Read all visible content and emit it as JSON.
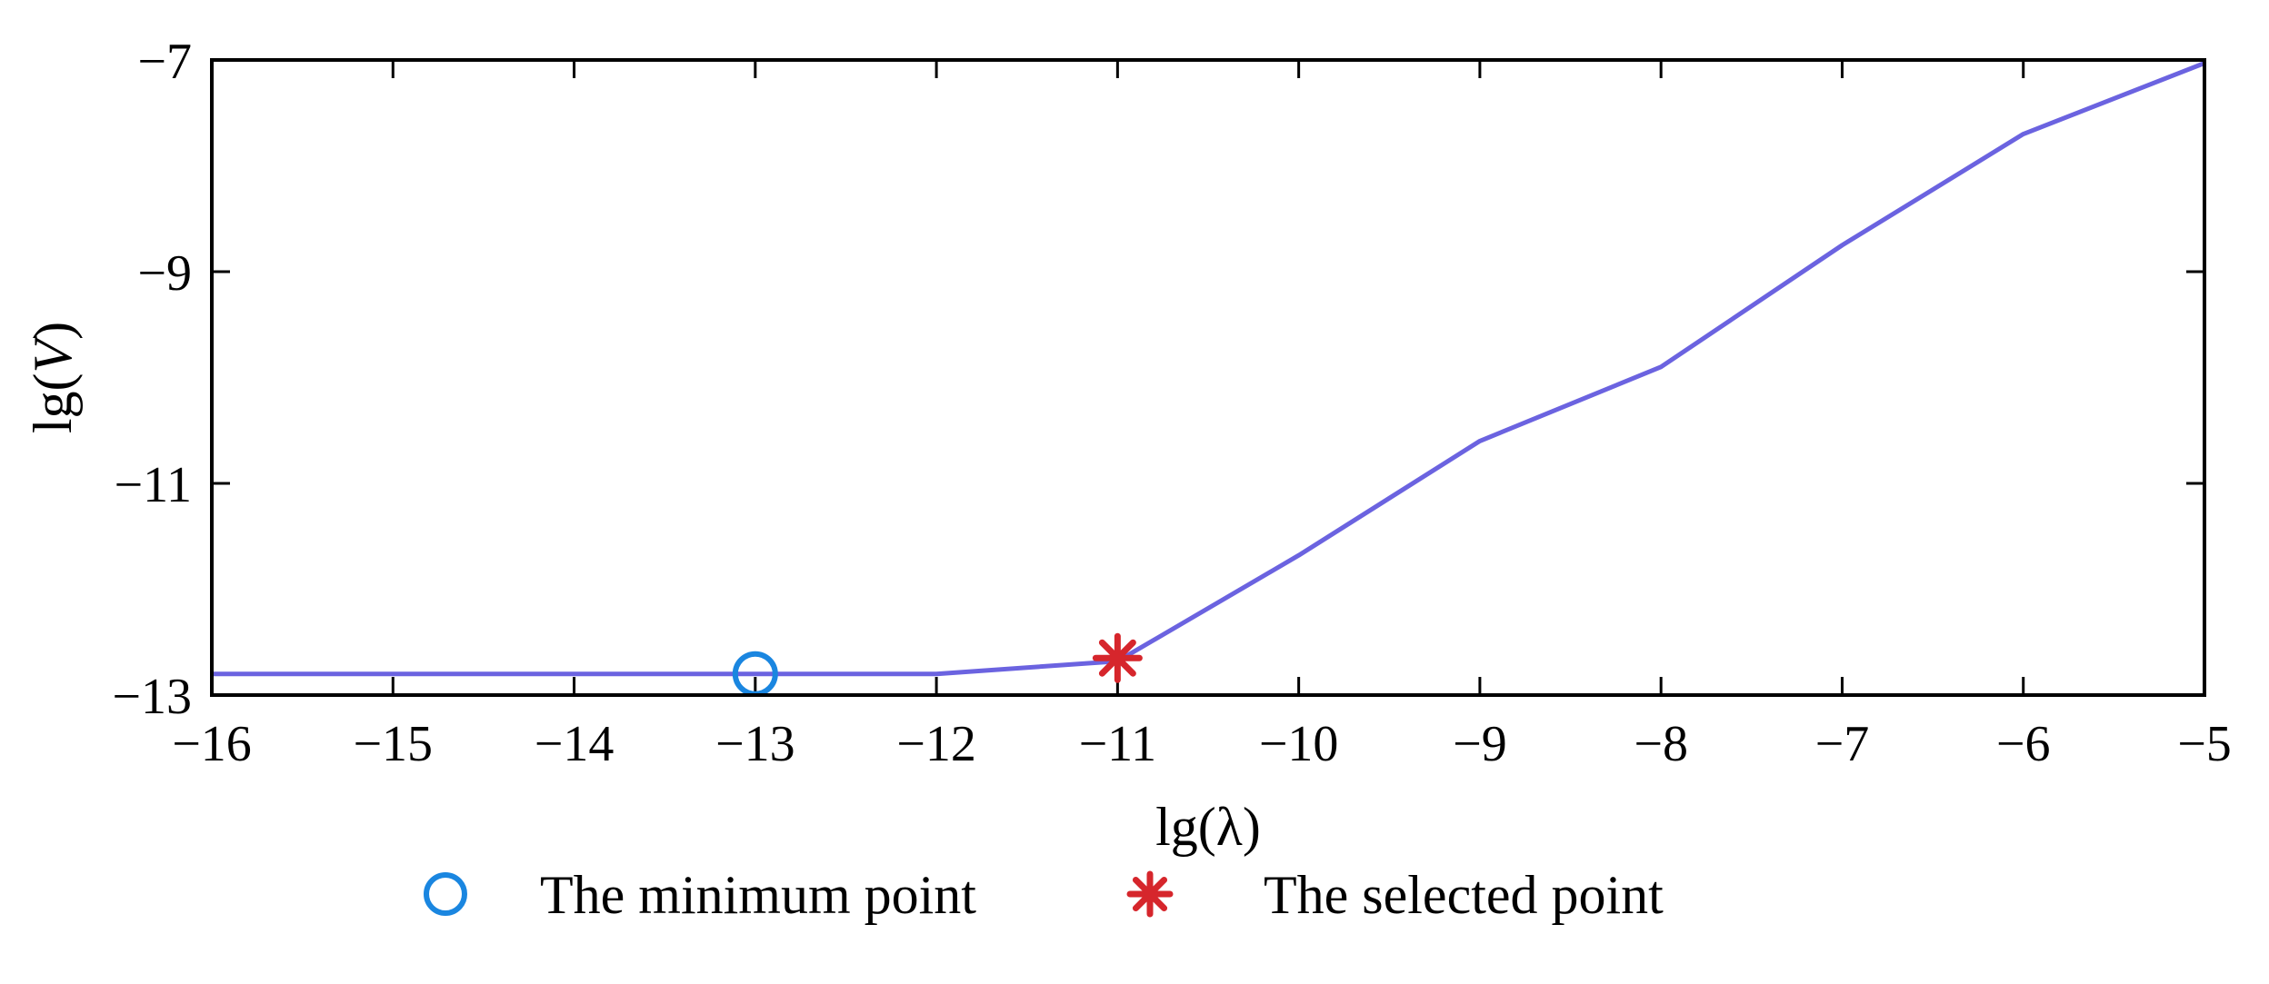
{
  "chart_data": {
    "type": "line",
    "title": "",
    "xlabel": "lg(λ)",
    "ylabel_prefix": "lg(",
    "ylabel_var": "V",
    "ylabel_suffix": ")",
    "xlim": [
      -16,
      -5
    ],
    "ylim": [
      -13,
      -7
    ],
    "xticks": [
      -16,
      -15,
      -14,
      -13,
      -12,
      -11,
      -10,
      -9,
      -8,
      -7,
      -6,
      -5
    ],
    "xtick_labels": [
      "−16",
      "−15",
      "−14",
      "−13",
      "−12",
      "−11",
      "−10",
      "−9",
      "−8",
      "−7",
      "−6",
      "−5"
    ],
    "yticks": [
      -13,
      -11,
      -9,
      -7
    ],
    "ytick_labels": [
      "−13",
      "−11",
      "−9",
      "−7"
    ],
    "grid": false,
    "legend_position": "bottom",
    "series": [
      {
        "color": "#6b63e0",
        "x": [
          -16,
          -15,
          -14,
          -13,
          -12,
          -11,
          -10,
          -9,
          -8,
          -7,
          -6,
          -5
        ],
        "y": [
          -12.8,
          -12.8,
          -12.8,
          -12.8,
          -12.8,
          -12.68,
          -11.68,
          -10.6,
          -9.9,
          -8.75,
          -7.7,
          -7.03
        ]
      }
    ],
    "markers": [
      {
        "label": "The minimum point",
        "symbol": "circle",
        "color": "#1a86e0",
        "x": -13,
        "y": -12.8
      },
      {
        "label": "The selected point",
        "symbol": "asterisk",
        "color": "#d6262c",
        "x": -11,
        "y": -12.65
      }
    ]
  }
}
